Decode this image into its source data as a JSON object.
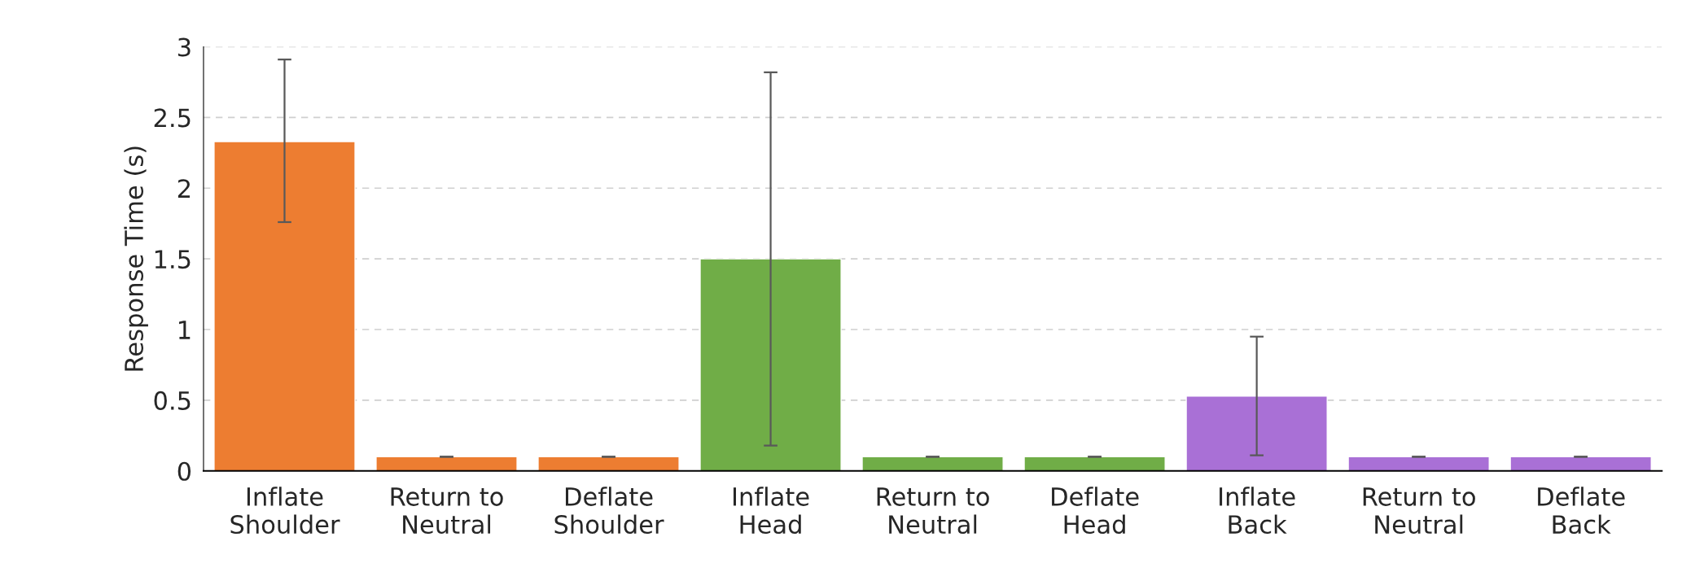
{
  "chart_data": {
    "type": "bar",
    "ylabel": "Response Time (s)",
    "categories": [
      "Inflate\nShoulder",
      "Return to\nNeutral",
      "Deflate\nShoulder",
      "Inflate\nHead",
      "Return to\nNeutral",
      "Deflate\nHead",
      "Inflate\nBack",
      "Return to\nNeutral",
      "Deflate\nBack"
    ],
    "values": [
      2.33,
      0.1,
      0.1,
      1.5,
      0.1,
      0.1,
      0.53,
      0.1,
      0.1
    ],
    "errors": [
      [
        1.76,
        2.91
      ],
      0,
      0,
      [
        0.18,
        2.82
      ],
      0,
      0,
      [
        0.11,
        0.95
      ],
      0,
      0
    ],
    "colors": [
      "#ed7d31",
      "#ed7d31",
      "#ed7d31",
      "#70ad47",
      "#70ad47",
      "#70ad47",
      "#a970d6",
      "#a970d6",
      "#a970d6"
    ],
    "ylim": [
      0,
      3
    ],
    "yticks": [
      0,
      0.5,
      1,
      1.5,
      2,
      2.5,
      3
    ],
    "grid": "y"
  }
}
